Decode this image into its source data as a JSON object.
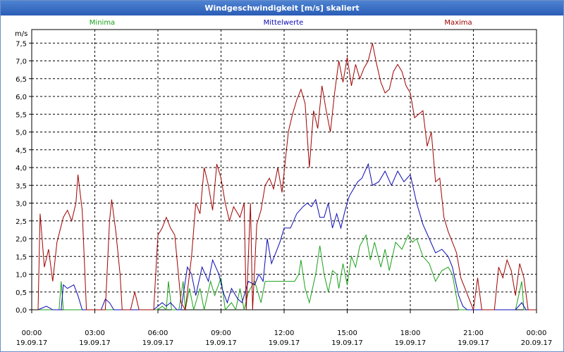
{
  "window": {
    "title": "Windgeschwindigkeit [m/s] skaliert"
  },
  "colors": {
    "min": "#1aa01a",
    "avg": "#0a0ab4",
    "max": "#a00000",
    "grid": "#000000"
  },
  "chart_data": {
    "type": "line",
    "title": "Windgeschwindigkeit [m/s] skaliert",
    "ylabel": "m/s",
    "ylim": [
      0,
      8
    ],
    "xlim": [
      0,
      24
    ],
    "y_ticks": [
      {
        "v": 0,
        "label": "0,0"
      },
      {
        "v": 0.5,
        "label": "0,5"
      },
      {
        "v": 1,
        "label": "1,0"
      },
      {
        "v": 1.5,
        "label": "1,5"
      },
      {
        "v": 2,
        "label": "2,0"
      },
      {
        "v": 2.5,
        "label": "2,5"
      },
      {
        "v": 3,
        "label": "3,0"
      },
      {
        "v": 3.5,
        "label": "3,5"
      },
      {
        "v": 4,
        "label": "4,0"
      },
      {
        "v": 4.5,
        "label": "4,5"
      },
      {
        "v": 5,
        "label": "5,0"
      },
      {
        "v": 5.5,
        "label": "5,5"
      },
      {
        "v": 6,
        "label": "6,0"
      },
      {
        "v": 6.5,
        "label": "6,5"
      },
      {
        "v": 7,
        "label": "7,0"
      },
      {
        "v": 7.5,
        "label": "7,5"
      }
    ],
    "x_ticks": [
      {
        "v": 0,
        "time": "00:00",
        "date": "19.09.17"
      },
      {
        "v": 3,
        "time": "03:00",
        "date": "19.09.17"
      },
      {
        "v": 6,
        "time": "06:00",
        "date": "19.09.17"
      },
      {
        "v": 9,
        "time": "09:00",
        "date": "19.09.17"
      },
      {
        "v": 12,
        "time": "12:00",
        "date": "19.09.17"
      },
      {
        "v": 15,
        "time": "15:00",
        "date": "19.09.17"
      },
      {
        "v": 18,
        "time": "18:00",
        "date": "19.09.17"
      },
      {
        "v": 21,
        "time": "21:00",
        "date": "19.09.17"
      },
      {
        "v": 24,
        "time": "00:00",
        "date": "20.09.17"
      }
    ],
    "series": [
      {
        "name": "Minima",
        "color": "#1aa01a",
        "points": [
          [
            0.3,
            0
          ],
          [
            1.3,
            0
          ],
          [
            1.4,
            0.8
          ],
          [
            1.5,
            0
          ],
          [
            6,
            0
          ],
          [
            6.2,
            0.1
          ],
          [
            6.4,
            0
          ],
          [
            6.5,
            0.8
          ],
          [
            6.65,
            0
          ],
          [
            7,
            0
          ],
          [
            7.2,
            0.8
          ],
          [
            7.3,
            0
          ],
          [
            7.5,
            0.6
          ],
          [
            7.7,
            0
          ],
          [
            8,
            0.6
          ],
          [
            8.2,
            0
          ],
          [
            8.5,
            0.8
          ],
          [
            8.7,
            0.4
          ],
          [
            9,
            0.9
          ],
          [
            9.2,
            0
          ],
          [
            9.5,
            0.2
          ],
          [
            9.7,
            0
          ],
          [
            9.9,
            0.6
          ],
          [
            10.1,
            0
          ],
          [
            10.3,
            0.5
          ],
          [
            10.6,
            0.8
          ],
          [
            10.9,
            0.2
          ],
          [
            11.1,
            0.8
          ],
          [
            11.3,
            0.8
          ],
          [
            12.5,
            0.8
          ],
          [
            12.7,
            1
          ],
          [
            12.8,
            1.4
          ],
          [
            12.9,
            1
          ],
          [
            13,
            0.6
          ],
          [
            13.2,
            0.2
          ],
          [
            13.5,
            1
          ],
          [
            13.7,
            1.8
          ],
          [
            13.9,
            1
          ],
          [
            14.1,
            0.5
          ],
          [
            14.3,
            1.1
          ],
          [
            14.5,
            1
          ],
          [
            14.6,
            0.6
          ],
          [
            14.8,
            1.3
          ],
          [
            15,
            0.7
          ],
          [
            15.2,
            1.5
          ],
          [
            15.4,
            1.2
          ],
          [
            15.6,
            1.8
          ],
          [
            15.9,
            2.1
          ],
          [
            16.1,
            1.4
          ],
          [
            16.3,
            1.9
          ],
          [
            16.6,
            1.2
          ],
          [
            16.8,
            1.7
          ],
          [
            17,
            1.1
          ],
          [
            17.3,
            1.9
          ],
          [
            17.6,
            1.7
          ],
          [
            17.9,
            2.1
          ],
          [
            18.1,
            1.9
          ],
          [
            18.3,
            2
          ],
          [
            18.6,
            1.5
          ],
          [
            18.9,
            1.3
          ],
          [
            19.2,
            0.8
          ],
          [
            19.5,
            1.1
          ],
          [
            19.8,
            1.2
          ],
          [
            20,
            1
          ],
          [
            20.3,
            0
          ],
          [
            23,
            0
          ],
          [
            23.3,
            0.8
          ],
          [
            23.4,
            0
          ],
          [
            24,
            0
          ]
        ]
      },
      {
        "name": "Mittelwerte",
        "color": "#0a0ab4",
        "points": [
          [
            0.3,
            0
          ],
          [
            0.7,
            0.1
          ],
          [
            1,
            0
          ],
          [
            1.4,
            0
          ],
          [
            1.5,
            0.7
          ],
          [
            1.7,
            0.6
          ],
          [
            2,
            0.7
          ],
          [
            2.2,
            0.4
          ],
          [
            2.4,
            0
          ],
          [
            3.3,
            0
          ],
          [
            3.5,
            0.3
          ],
          [
            3.7,
            0.2
          ],
          [
            3.9,
            0
          ],
          [
            5.8,
            0
          ],
          [
            6,
            0.1
          ],
          [
            6.2,
            0.2
          ],
          [
            6.4,
            0.1
          ],
          [
            6.6,
            0.2
          ],
          [
            6.9,
            0
          ],
          [
            7.1,
            0
          ],
          [
            7.4,
            1.2
          ],
          [
            7.6,
            1
          ],
          [
            7.8,
            0.4
          ],
          [
            8.1,
            1.2
          ],
          [
            8.4,
            0.8
          ],
          [
            8.6,
            1.4
          ],
          [
            8.9,
            1
          ],
          [
            9.1,
            0.5
          ],
          [
            9.3,
            0.2
          ],
          [
            9.5,
            0.6
          ],
          [
            9.8,
            0.3
          ],
          [
            10,
            0.2
          ],
          [
            10.3,
            0.8
          ],
          [
            10.6,
            0.7
          ],
          [
            10.8,
            1
          ],
          [
            11,
            0.8
          ],
          [
            11.2,
            2
          ],
          [
            11.4,
            1.3
          ],
          [
            11.6,
            1.6
          ],
          [
            11.8,
            1.9
          ],
          [
            12,
            2.3
          ],
          [
            12.3,
            2.3
          ],
          [
            12.6,
            2.7
          ],
          [
            12.9,
            2.9
          ],
          [
            13.1,
            3
          ],
          [
            13.3,
            2.9
          ],
          [
            13.5,
            3.1
          ],
          [
            13.7,
            2.6
          ],
          [
            13.9,
            2.6
          ],
          [
            14.1,
            3
          ],
          [
            14.3,
            2.3
          ],
          [
            14.5,
            2.7
          ],
          [
            14.7,
            2.3
          ],
          [
            14.9,
            2.8
          ],
          [
            15.1,
            3.2
          ],
          [
            15.3,
            3.4
          ],
          [
            15.5,
            3.6
          ],
          [
            15.7,
            3.7
          ],
          [
            16,
            4.1
          ],
          [
            16.2,
            3.5
          ],
          [
            16.5,
            3.6
          ],
          [
            16.8,
            3.9
          ],
          [
            17.1,
            3.5
          ],
          [
            17.4,
            3.9
          ],
          [
            17.7,
            3.6
          ],
          [
            18,
            3.8
          ],
          [
            18.3,
            3
          ],
          [
            18.6,
            2.4
          ],
          [
            18.9,
            2
          ],
          [
            19.2,
            1.6
          ],
          [
            19.5,
            1.7
          ],
          [
            19.8,
            1.5
          ],
          [
            20,
            1.2
          ],
          [
            20.3,
            0.4
          ],
          [
            20.5,
            0.1
          ],
          [
            20.7,
            0
          ],
          [
            23,
            0
          ],
          [
            23.3,
            0.2
          ],
          [
            23.5,
            0
          ],
          [
            24,
            0
          ]
        ]
      },
      {
        "name": "Maxima",
        "color": "#a00000",
        "points": [
          [
            0.3,
            0
          ],
          [
            0.4,
            2.7
          ],
          [
            0.6,
            1.2
          ],
          [
            0.8,
            1.7
          ],
          [
            1,
            0.8
          ],
          [
            1.2,
            1.9
          ],
          [
            1.5,
            2.6
          ],
          [
            1.7,
            2.8
          ],
          [
            1.9,
            2.5
          ],
          [
            2.1,
            3
          ],
          [
            2.2,
            3.8
          ],
          [
            2.4,
            2.8
          ],
          [
            2.6,
            0
          ],
          [
            3.5,
            0
          ],
          [
            3.7,
            2.5
          ],
          [
            3.8,
            3.1
          ],
          [
            4,
            2.2
          ],
          [
            4.2,
            1
          ],
          [
            4.3,
            0
          ],
          [
            4.7,
            0
          ],
          [
            4.9,
            0.5
          ],
          [
            5.1,
            0
          ],
          [
            5.8,
            0
          ],
          [
            6,
            2.1
          ],
          [
            6.2,
            2.3
          ],
          [
            6.4,
            2.6
          ],
          [
            6.6,
            2.3
          ],
          [
            6.8,
            2.1
          ],
          [
            7.1,
            0.2
          ],
          [
            7.3,
            0
          ],
          [
            7.6,
            1.5
          ],
          [
            7.8,
            3
          ],
          [
            8,
            2.7
          ],
          [
            8.2,
            4
          ],
          [
            8.4,
            3.5
          ],
          [
            8.6,
            2.8
          ],
          [
            8.8,
            4.1
          ],
          [
            9,
            3.7
          ],
          [
            9.2,
            3
          ],
          [
            9.4,
            2.5
          ],
          [
            9.6,
            2.9
          ],
          [
            9.9,
            2.6
          ],
          [
            10.1,
            3
          ],
          [
            10.2,
            0
          ],
          [
            10.4,
            3
          ],
          [
            10.5,
            0
          ],
          [
            10.7,
            2.4
          ],
          [
            10.9,
            2.8
          ],
          [
            11.1,
            3.5
          ],
          [
            11.3,
            3.7
          ],
          [
            11.5,
            3.4
          ],
          [
            11.7,
            4
          ],
          [
            11.9,
            3.3
          ],
          [
            12.2,
            5
          ],
          [
            12.4,
            5.5
          ],
          [
            12.6,
            5.9
          ],
          [
            12.8,
            6.2
          ],
          [
            13,
            5.8
          ],
          [
            13.2,
            4
          ],
          [
            13.4,
            5.6
          ],
          [
            13.6,
            5.1
          ],
          [
            13.8,
            6.3
          ],
          [
            14,
            5.6
          ],
          [
            14.2,
            5
          ],
          [
            14.4,
            6.1
          ],
          [
            14.6,
            7
          ],
          [
            14.8,
            6.4
          ],
          [
            15,
            7.1
          ],
          [
            15.2,
            6.3
          ],
          [
            15.4,
            6.9
          ],
          [
            15.6,
            6.5
          ],
          [
            15.8,
            6.8
          ],
          [
            16,
            7
          ],
          [
            16.2,
            7.5
          ],
          [
            16.4,
            6.9
          ],
          [
            16.6,
            6.4
          ],
          [
            16.8,
            6.1
          ],
          [
            17,
            6.2
          ],
          [
            17.2,
            6.7
          ],
          [
            17.4,
            6.9
          ],
          [
            17.6,
            6.7
          ],
          [
            17.8,
            6.3
          ],
          [
            18,
            6.1
          ],
          [
            18.2,
            5.4
          ],
          [
            18.4,
            5.5
          ],
          [
            18.6,
            5.6
          ],
          [
            18.8,
            4.6
          ],
          [
            19,
            5
          ],
          [
            19.2,
            3.6
          ],
          [
            19.4,
            3.7
          ],
          [
            19.6,
            2.6
          ],
          [
            19.8,
            2.2
          ],
          [
            20,
            1.9
          ],
          [
            20.2,
            1.6
          ],
          [
            20.4,
            0.9
          ],
          [
            20.6,
            0.6
          ],
          [
            20.8,
            0.3
          ],
          [
            21,
            0
          ],
          [
            21.2,
            0.9
          ],
          [
            21.4,
            0
          ],
          [
            22,
            0
          ],
          [
            22.2,
            1.2
          ],
          [
            22.4,
            0.9
          ],
          [
            22.6,
            1.4
          ],
          [
            22.8,
            1.1
          ],
          [
            23,
            0.4
          ],
          [
            23.2,
            1.3
          ],
          [
            23.4,
            0.9
          ],
          [
            23.6,
            0
          ],
          [
            24,
            0
          ]
        ]
      }
    ]
  }
}
